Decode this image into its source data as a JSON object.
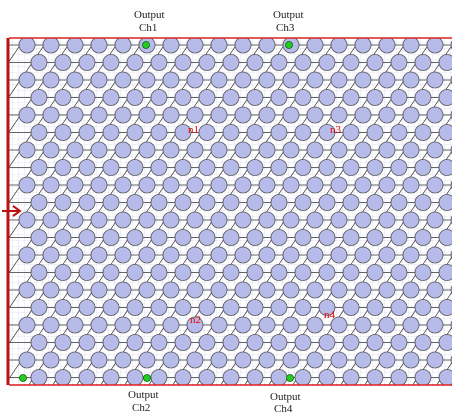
{
  "outputs": [
    {
      "label": "Output",
      "channel": "Ch1"
    },
    {
      "label": "Output",
      "channel": "Ch3"
    },
    {
      "label": "Output",
      "channel": "Ch2"
    },
    {
      "label": "Output",
      "channel": "Ch4"
    }
  ],
  "regions": [
    "n1",
    "n3",
    "n2",
    "n4"
  ]
}
